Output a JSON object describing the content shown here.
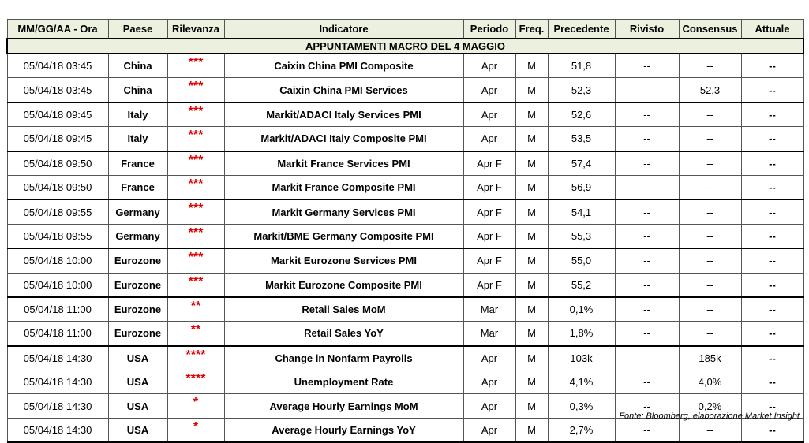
{
  "title": "APPUNTAMENTI MACRO DEL 4 MAGGIO",
  "table": {
    "header": [
      "MM/GG/AA - Ora",
      "Paese",
      "Rilevanza",
      "Indicatore",
      "Periodo",
      "Freq.",
      "Precedente",
      "Rivisto",
      "Consensus",
      "Attuale"
    ],
    "rows": [
      [
        "05/04/18 03:45",
        "China",
        "***",
        "Caixin China PMI Composite",
        "Apr",
        "M",
        "51,8",
        "--",
        "--",
        "--"
      ],
      [
        "05/04/18 03:45",
        "China",
        "***",
        "Caixin China PMI Services",
        "Apr",
        "M",
        "52,3",
        "--",
        "52,3",
        "--"
      ],
      [
        "05/04/18 09:45",
        "Italy",
        "***",
        "Markit/ADACI Italy Services PMI",
        "Apr",
        "M",
        "52,6",
        "--",
        "--",
        "--"
      ],
      [
        "05/04/18 09:45",
        "Italy",
        "***",
        "Markit/ADACI Italy Composite PMI",
        "Apr",
        "M",
        "53,5",
        "--",
        "--",
        "--"
      ],
      [
        "05/04/18 09:50",
        "France",
        "***",
        "Markit France Services PMI",
        "Apr F",
        "M",
        "57,4",
        "--",
        "--",
        "--"
      ],
      [
        "05/04/18 09:50",
        "France",
        "***",
        "Markit France Composite PMI",
        "Apr F",
        "M",
        "56,9",
        "--",
        "--",
        "--"
      ],
      [
        "05/04/18 09:55",
        "Germany",
        "***",
        "Markit Germany Services PMI",
        "Apr F",
        "M",
        "54,1",
        "--",
        "--",
        "--"
      ],
      [
        "05/04/18 09:55",
        "Germany",
        "***",
        "Markit/BME Germany Composite PMI",
        "Apr F",
        "M",
        "55,3",
        "--",
        "--",
        "--"
      ],
      [
        "05/04/18 10:00",
        "Eurozone",
        "***",
        "Markit Eurozone Services PMI",
        "Apr F",
        "M",
        "55,0",
        "--",
        "--",
        "--"
      ],
      [
        "05/04/18 10:00",
        "Eurozone",
        "***",
        "Markit Eurozone Composite PMI",
        "Apr F",
        "M",
        "55,2",
        "--",
        "--",
        "--"
      ],
      [
        "05/04/18 11:00",
        "Eurozone",
        "**",
        "Retail Sales MoM",
        "Mar",
        "M",
        "0,1%",
        "--",
        "--",
        "--"
      ],
      [
        "05/04/18 11:00",
        "Eurozone",
        "**",
        "Retail Sales YoY",
        "Mar",
        "M",
        "1,8%",
        "--",
        "--",
        "--"
      ],
      [
        "05/04/18 14:30",
        "USA",
        "****",
        "Change in Nonfarm Payrolls",
        "Apr",
        "M",
        "103k",
        "--",
        "185k",
        "--"
      ],
      [
        "05/04/18 14:30",
        "USA",
        "****",
        "Unemployment Rate",
        "Apr",
        "M",
        "4,1%",
        "--",
        "4,0%",
        "--"
      ],
      [
        "05/04/18 14:30",
        "USA",
        "*",
        "Average Hourly Earnings MoM",
        "Apr",
        "M",
        "0,3%",
        "--",
        "0,2%",
        "--"
      ],
      [
        "05/04/18 14:30",
        "USA",
        "*",
        "Average Hourly Earnings YoY",
        "Apr",
        "M",
        "2,7%",
        "--",
        "--",
        "--"
      ]
    ]
  },
  "source": "Fonte: Bloomberg, elaborazione Market Insight"
}
